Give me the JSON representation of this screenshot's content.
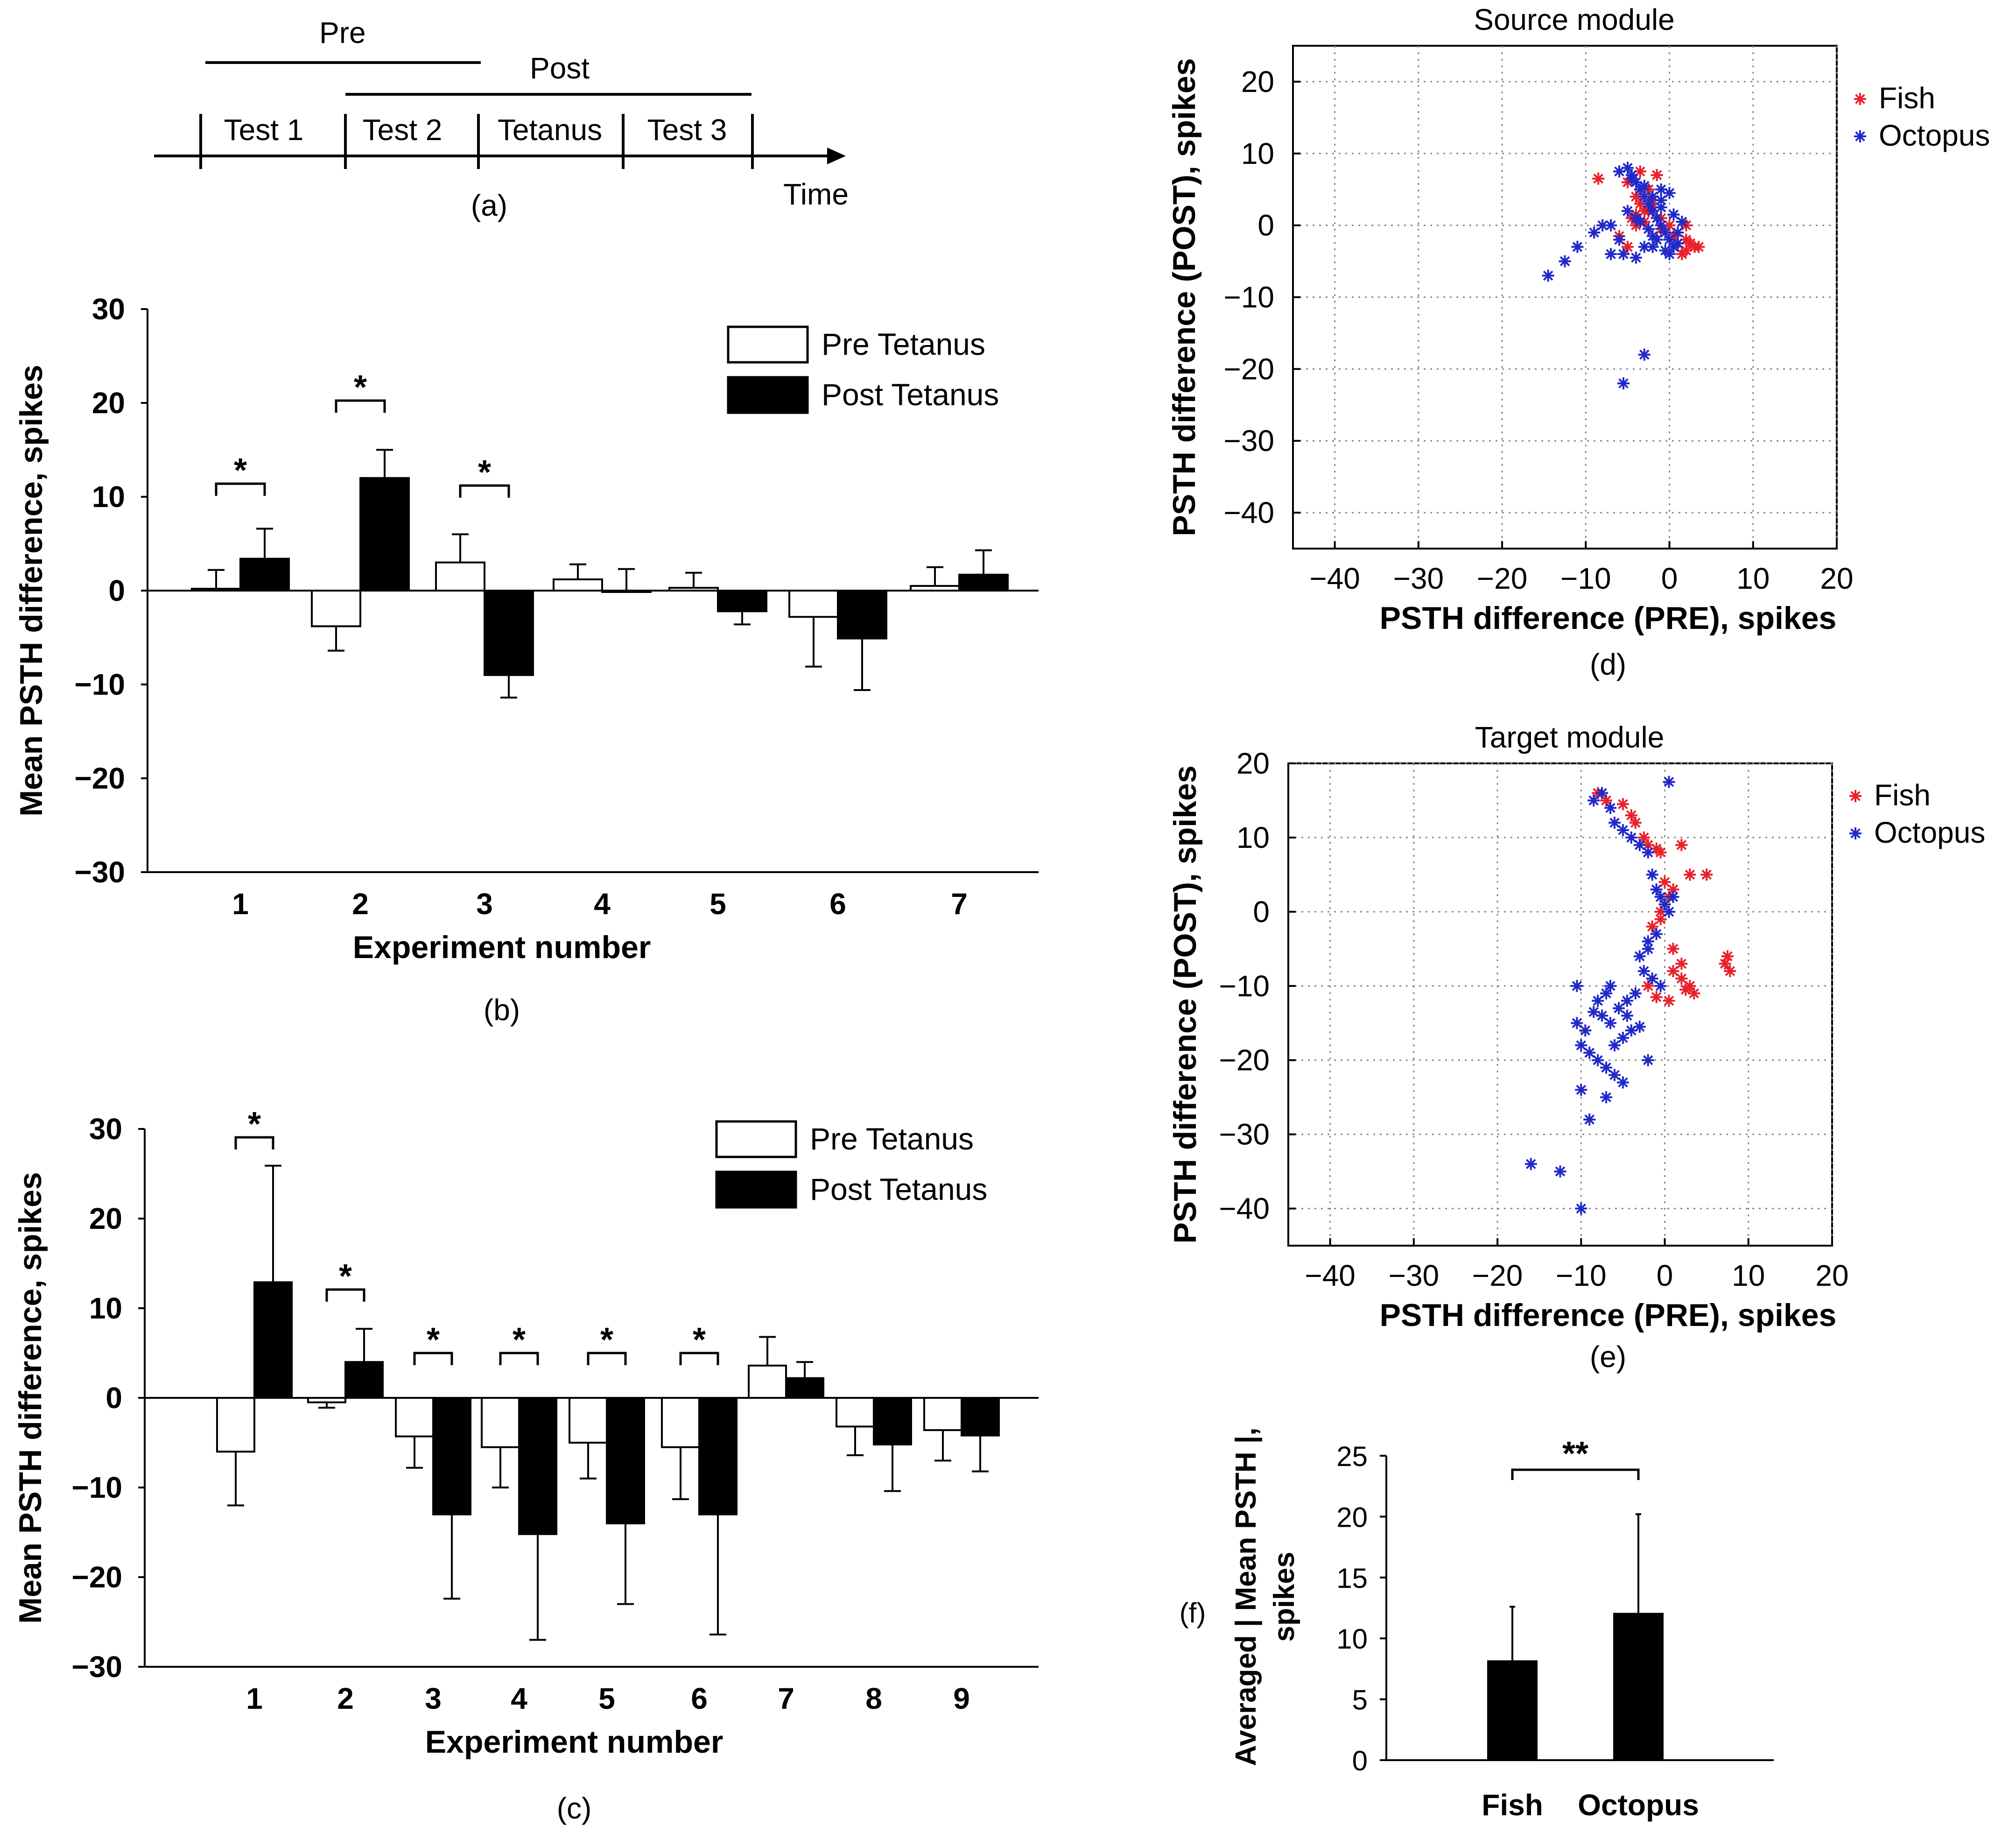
{
  "timeline": {
    "pre_label": "Pre",
    "post_label": "Post",
    "segments": [
      "Test 1",
      "Test 2",
      "Tetanus",
      "Test 3"
    ],
    "time_label": "Time",
    "panel_label": "(a)"
  },
  "chart_data": [
    {
      "id": "b",
      "type": "bar",
      "panel_label": "(b)",
      "xlabel": "Experiment number",
      "ylabel": "Mean PSTH difference, spikes",
      "ylim": [
        -30,
        30
      ],
      "yticks": [
        -30,
        -20,
        -10,
        0,
        10,
        20,
        30
      ],
      "categories": [
        "1",
        "2",
        "3",
        "4",
        "5",
        "6",
        "7"
      ],
      "legend": [
        "Pre Tetanus",
        "Post Tetanus"
      ],
      "series": [
        {
          "name": "Pre Tetanus",
          "values": [
            0.2,
            -3.8,
            3.0,
            1.2,
            0.3,
            -2.8,
            0.5
          ],
          "errors": [
            2.0,
            2.6,
            3.0,
            1.6,
            1.6,
            5.3,
            2.0
          ]
        },
        {
          "name": "Post Tetanus",
          "values": [
            3.4,
            12.0,
            -9.0,
            0.0,
            -2.2,
            -5.1,
            1.7
          ],
          "errors": [
            3.2,
            3.0,
            2.4,
            2.3,
            1.4,
            5.5,
            2.6
          ]
        }
      ],
      "significant": [
        1,
        2,
        3
      ],
      "significance_marker": "*"
    },
    {
      "id": "c",
      "type": "bar",
      "panel_label": "(c)",
      "xlabel": "Experiment number",
      "ylabel": "Mean PSTH difference, spikes",
      "ylim": [
        -30,
        30
      ],
      "yticks": [
        -30,
        -20,
        -10,
        0,
        10,
        20,
        30
      ],
      "categories": [
        "1",
        "2",
        "3",
        "4",
        "5",
        "6",
        "7",
        "8",
        "9"
      ],
      "legend": [
        "Pre Tetanus",
        "Post Tetanus"
      ],
      "series": [
        {
          "name": "Pre Tetanus",
          "values": [
            -6.0,
            -0.5,
            -4.3,
            -5.5,
            -5.0,
            -5.5,
            3.6,
            -3.2,
            -3.6
          ],
          "errors": [
            6.0,
            0.6,
            3.5,
            4.5,
            4.0,
            5.8,
            3.2,
            3.2,
            3.4
          ]
        },
        {
          "name": "Post Tetanus",
          "values": [
            12.9,
            4.0,
            -13.0,
            -15.2,
            -14.0,
            -13.0,
            2.2,
            -5.2,
            -4.2
          ],
          "errors": [
            13.0,
            3.7,
            9.4,
            11.8,
            9.0,
            13.4,
            1.8,
            5.2,
            4.0
          ]
        }
      ],
      "significant": [
        1,
        2,
        3,
        4,
        5,
        6
      ],
      "significance_marker": "*"
    },
    {
      "id": "d",
      "type": "scatter",
      "panel_label": "(d)",
      "title": "Source module",
      "xlabel": "PSTH difference (PRE), spikes",
      "ylabel": "PSTH difference (POST), spikes",
      "xlim": [
        -45,
        20
      ],
      "ylim": [
        -45,
        25
      ],
      "xticks": [
        -40,
        -30,
        -20,
        -10,
        0,
        10,
        20
      ],
      "yticks": [
        -40,
        -30,
        -20,
        -10,
        0,
        10,
        20
      ],
      "legend": [
        "Fish",
        "Octopus"
      ],
      "series": [
        {
          "name": "Fish",
          "color": "#e8202a",
          "x": [
            -8.5,
            -5.0,
            -4.0,
            -3.5,
            -3.0,
            -2.5,
            -4.5,
            -3.0,
            -2.0,
            -1.0,
            0.0,
            1.0,
            2.0,
            3.0,
            2.5,
            1.5,
            -6.0,
            -5.0,
            -4.0,
            -2.0,
            -1.5,
            -3.5,
            0.5,
            2.0,
            3.5,
            -2.5,
            -1.0,
            1.0,
            2.0,
            -4.0
          ],
          "y": [
            6.5,
            6.0,
            4.0,
            3.0,
            2.0,
            5.0,
            1.0,
            0.5,
            2.5,
            1.0,
            0.0,
            -1.0,
            -2.0,
            -3.0,
            -2.5,
            -4.0,
            -1.5,
            -3.0,
            1.5,
            3.5,
            7.0,
            7.5,
            -1.5,
            -3.5,
            -3.0,
            2.0,
            -0.5,
            -2.5,
            0.0,
            0.0
          ]
        },
        {
          "name": "Octopus",
          "color": "#2029c8",
          "x": [
            -14.5,
            -12.5,
            -11.0,
            -9.0,
            -7.0,
            -6.0,
            -5.5,
            -5.0,
            -4.5,
            -4.0,
            -3.5,
            -3.0,
            -2.5,
            -2.0,
            -1.5,
            -1.0,
            -0.5,
            0.0,
            0.5,
            1.0,
            1.5,
            -4.0,
            -3.0,
            -2.0,
            -1.0,
            0.0,
            -5.0,
            -3.5,
            -2.5,
            -1.5,
            -0.5,
            0.5,
            -6.0,
            -4.5,
            -3.0,
            -2.0,
            -1.0,
            0.0,
            -3.0,
            -5.5,
            -4.0,
            -2.0,
            -1.0,
            1.0,
            -7.0,
            -8.0
          ],
          "y": [
            -7.0,
            -5.0,
            -3.0,
            -1.0,
            0.0,
            -2.0,
            -4.0,
            8.0,
            7.0,
            6.0,
            5.0,
            4.0,
            3.0,
            2.0,
            1.0,
            0.0,
            -1.0,
            -2.0,
            -3.0,
            -1.0,
            0.5,
            -4.5,
            -3.0,
            -1.5,
            2.5,
            4.5,
            2.0,
            0.5,
            -0.5,
            -2.0,
            -3.5,
            1.5,
            7.5,
            6.5,
            5.5,
            4.0,
            3.5,
            -4.0,
            -18.0,
            -22.0,
            1.0,
            -3.0,
            5.0,
            -2.5,
            -4.0,
            0.0
          ]
        }
      ]
    },
    {
      "id": "e",
      "type": "scatter",
      "panel_label": "(e)",
      "title": "Target module",
      "xlabel": "PSTH difference (PRE), spikes",
      "ylabel": "PSTH difference (POST), spikes",
      "xlim": [
        -45,
        20
      ],
      "ylim": [
        -45,
        20
      ],
      "xticks": [
        -40,
        -30,
        -20,
        -10,
        0,
        10,
        20
      ],
      "yticks": [
        -40,
        -30,
        -20,
        -10,
        0,
        10,
        20
      ],
      "legend": [
        "Fish",
        "Octopus"
      ],
      "series": [
        {
          "name": "Fish",
          "color": "#e8202a",
          "x": [
            -8.0,
            -7.0,
            -5.0,
            -4.0,
            -3.5,
            -2.0,
            -1.0,
            -0.5,
            0.0,
            1.0,
            2.0,
            3.0,
            5.0,
            7.5,
            7.8,
            7.2,
            2.5,
            3.5,
            2.0,
            1.0,
            0.5,
            -1.0,
            -2.0,
            -1.5,
            -0.5,
            1.0,
            2.0,
            3.0,
            -0.5,
            0.5,
            -2.5
          ],
          "y": [
            16.0,
            15.0,
            14.5,
            13.0,
            12.0,
            9.0,
            8.5,
            8.0,
            4.0,
            3.0,
            9.0,
            5.0,
            5.0,
            -6.0,
            -8.0,
            -7.0,
            -10.5,
            -11.0,
            -9.0,
            -8.0,
            -12.0,
            -11.5,
            -10.0,
            -2.0,
            -1.0,
            -5.0,
            -7.0,
            -10.0,
            0.0,
            2.0,
            10.0
          ]
        },
        {
          "name": "Octopus",
          "color": "#2029c8",
          "x": [
            -8.5,
            -7.5,
            -6.5,
            -6.0,
            -5.0,
            -4.0,
            -3.0,
            -2.0,
            -1.5,
            -1.0,
            -0.5,
            0.0,
            0.5,
            1.0,
            -1.0,
            -2.0,
            -3.0,
            -2.5,
            -1.5,
            -0.5,
            -3.5,
            -4.5,
            -5.5,
            -6.5,
            -7.5,
            -8.5,
            -9.5,
            -10.0,
            -10.5,
            -9.0,
            -8.0,
            -7.0,
            -6.0,
            -5.0,
            -4.0,
            -3.0,
            -2.0,
            -5.0,
            -6.0,
            -7.0,
            -9.0,
            -10.0,
            -10.5,
            -8.0,
            -7.0,
            -12.5,
            -16.0,
            -10.0,
            0.5,
            -2.0,
            -6.5,
            -4.5
          ],
          "y": [
            15.0,
            16.0,
            14.0,
            12.0,
            11.0,
            10.0,
            9.0,
            8.0,
            5.0,
            3.0,
            2.0,
            1.0,
            0.0,
            2.0,
            -3.0,
            -5.0,
            -6.0,
            -8.0,
            -9.0,
            -10.0,
            -11.0,
            -12.0,
            -13.0,
            -15.0,
            -14.0,
            -13.5,
            -16.0,
            -18.0,
            -10.0,
            -19.0,
            -20.0,
            -21.0,
            -18.0,
            -17.0,
            -16.0,
            -15.5,
            -20.0,
            -23.0,
            -22.0,
            -25.0,
            -28.0,
            -24.0,
            -15.0,
            -12.0,
            -11.0,
            -35.0,
            -34.0,
            -40.0,
            17.5,
            -4.0,
            -10.0,
            -14.0
          ]
        }
      ]
    },
    {
      "id": "f",
      "type": "bar",
      "panel_label": "(f)",
      "xlabel": "",
      "ylabel": "Averaged | Mean PSTH |, spikes",
      "ylim": [
        0,
        25
      ],
      "yticks": [
        0,
        5,
        10,
        15,
        20,
        25
      ],
      "categories": [
        "Fish",
        "Octopus"
      ],
      "values": [
        8.2,
        12.1
      ],
      "errors": [
        4.4,
        8.1
      ],
      "significance_marker": "**"
    }
  ]
}
